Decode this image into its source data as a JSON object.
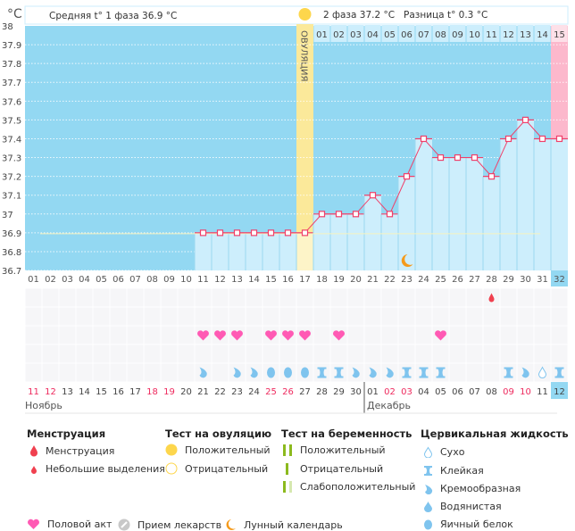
{
  "header": {
    "unit": "°C",
    "phase1_label": "Средняя t° 1 фаза",
    "phase1_value": "36.9 °C",
    "phase2_label": "2 фаза",
    "phase2_value": "37.2 °C",
    "diff_label": "Разница t°",
    "diff_value": "0.3 °C",
    "ovulation_label": "ОВУЛЯЦИЯ"
  },
  "colors": {
    "background": "#93d8f2",
    "bar": "#cdeefc",
    "ovulation": "#fbe99a",
    "line": "#f0406a",
    "current": "#fcb8cc",
    "heart": "#ff5ab4",
    "fluid": "#7fc4ee",
    "weekend": "#ee2a5e"
  },
  "chart_data": {
    "type": "line",
    "ylim": [
      36.7,
      38.0
    ],
    "yticks": [
      "38",
      "37.9",
      "37.8",
      "37.7",
      "37.6",
      "37.5",
      "37.4",
      "37.3",
      "37.2",
      "37.1",
      "37",
      "36.9",
      "36.8",
      "36.7"
    ],
    "cycle_days": [
      "01",
      "02",
      "03",
      "04",
      "05",
      "06",
      "07",
      "08",
      "09",
      "10",
      "11",
      "12",
      "13",
      "14",
      "15",
      "16",
      "17",
      "18",
      "19",
      "20",
      "21",
      "22",
      "23",
      "24",
      "25",
      "26",
      "27",
      "28",
      "29",
      "30",
      "31",
      "32"
    ],
    "temperatures": [
      null,
      null,
      null,
      null,
      null,
      null,
      null,
      null,
      null,
      null,
      36.9,
      36.9,
      36.9,
      36.9,
      36.9,
      36.9,
      36.9,
      37.0,
      37.0,
      37.0,
      37.1,
      37.0,
      37.2,
      37.4,
      37.3,
      37.3,
      37.3,
      37.2,
      37.4,
      37.5,
      37.4,
      37.4
    ],
    "coverline": 36.9,
    "ovulation_day": 17,
    "phase2_days": [
      "01",
      "02",
      "03",
      "04",
      "05",
      "06",
      "07",
      "08",
      "09",
      "10",
      "11",
      "12",
      "13",
      "14",
      "15"
    ],
    "moon_day": 23,
    "current_day": 32,
    "dates": [
      "11",
      "12",
      "13",
      "14",
      "15",
      "16",
      "17",
      "18",
      "19",
      "20",
      "21",
      "22",
      "23",
      "24",
      "25",
      "26",
      "27",
      "28",
      "29",
      "30",
      "01",
      "02",
      "03",
      "04",
      "05",
      "06",
      "07",
      "08",
      "09",
      "10",
      "11",
      "12"
    ],
    "weekend_dates_idx": [
      1,
      2,
      8,
      9,
      15,
      16,
      22,
      23,
      29,
      30
    ],
    "months": [
      "Ноябрь",
      "Декабрь"
    ],
    "menstruation": {
      "28": "spotting"
    },
    "intercourse": [
      11,
      12,
      13,
      15,
      16,
      17,
      19,
      25
    ],
    "cervical_fluid": {
      "11": "creamy",
      "13": "creamy",
      "14": "creamy",
      "15": "egg",
      "16": "egg",
      "17": "egg",
      "18": "sticky",
      "19": "sticky",
      "20": "creamy",
      "21": "creamy",
      "22": "creamy",
      "23": "sticky",
      "24": "sticky",
      "25": "sticky",
      "29": "sticky",
      "30": "creamy",
      "31": "dry",
      "32": "sticky"
    }
  },
  "legend": {
    "menstruation": {
      "title": "Менструация",
      "items": [
        "Менструация",
        "Небольшие выделения"
      ]
    },
    "ovulation_test": {
      "title": "Тест на овуляцию",
      "items": [
        "Положительный",
        "Отрицательный"
      ]
    },
    "pregnancy_test": {
      "title": "Тест на беременность",
      "items": [
        "Положительный",
        "Отрицательный",
        "Слабоположительный"
      ]
    },
    "cervical_fluid": {
      "title": "Цервикальная жидкость",
      "items": [
        "Сухо",
        "Клейкая",
        "Кремообразная",
        "Водянистая",
        "Яичный белок"
      ]
    },
    "other": [
      "Половой акт",
      "Прием лекарств",
      "Лунный календарь"
    ]
  }
}
